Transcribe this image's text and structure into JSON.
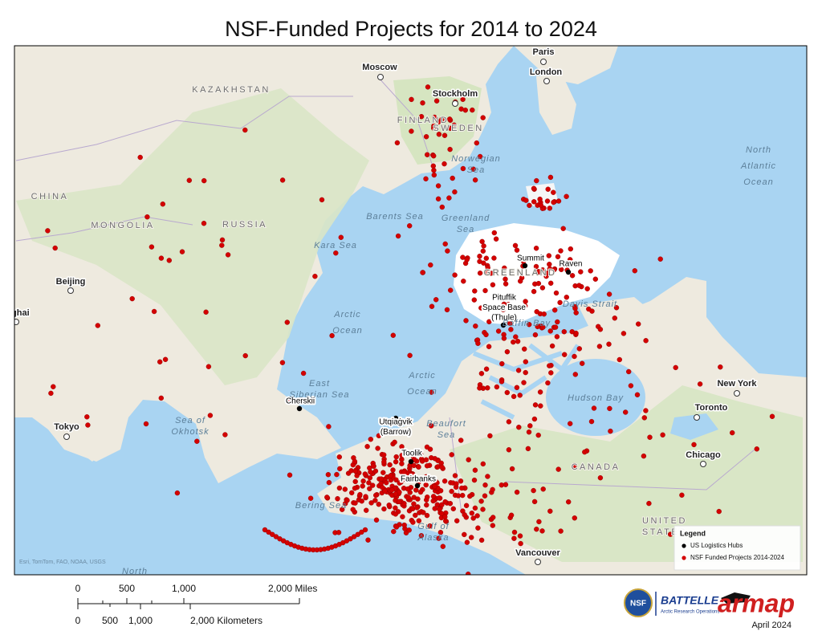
{
  "title": "NSF-Funded Projects for 2014 to 2024",
  "cities": [
    "Moscow",
    "Paris",
    "London",
    "Stockholm",
    "Beijing",
    "nghai",
    "Tokyo",
    "New York",
    "Toronto",
    "Chicago",
    "Vancouver"
  ],
  "hubs": [
    "Summit",
    "Raven",
    [
      "Pituffik",
      "Space Base",
      "(Thule)"
    ],
    "Cherskii",
    [
      "Utqiaġvik",
      "(Barrow)"
    ],
    "Toolik",
    "Fairbanks"
  ],
  "regions": [
    "KAZAKHSTAN",
    "CHINA",
    "MONGOLIA",
    "RUSSIA",
    "FINLAND",
    "SWEDEN",
    "GREENLAND",
    "CANADA",
    [
      "UNITED",
      "STATES"
    ]
  ],
  "waters": [
    [
      "Norwegian",
      "Sea"
    ],
    [
      "Barents Sea"
    ],
    [
      "Greenland",
      "Sea"
    ],
    [
      "Kara Sea"
    ],
    [
      "North",
      "Atlantic",
      "Ocean"
    ],
    [
      "Arctic",
      "Ocean"
    ],
    [
      "Arctic",
      "Ocean"
    ],
    [
      "East",
      "Siberian Sea"
    ],
    [
      "Sea of",
      "Okhotsk"
    ],
    [
      "Beaufort",
      "Sea"
    ],
    [
      "Davis Strait"
    ],
    [
      "Baffin Bay"
    ],
    [
      "Hudson Bay"
    ],
    [
      "Bering Sea"
    ],
    [
      "Gulf of",
      "Alaska"
    ],
    [
      "North"
    ]
  ],
  "attribution": "Esri, TomTom, FAO, NOAA, USGS",
  "legend": {
    "title": "Legend",
    "items": [
      "US Logistics Hubs",
      "NSF Funded Projects 2014-2024"
    ]
  },
  "scale": {
    "miles": [
      "0",
      "500",
      "1,000",
      "2,000 Miles"
    ],
    "kilometers": [
      "0",
      "500",
      "1,000",
      "2,000 Kilometers"
    ]
  },
  "footer": {
    "nsf": "NSF",
    "battelle": "BATTELLE",
    "battelle_sub": "Arctic Research Operations",
    "armap": "armap",
    "date": "April 2024"
  }
}
